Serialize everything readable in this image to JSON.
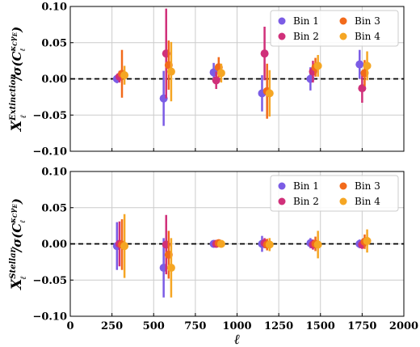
{
  "chart_data": [
    {
      "type": "scatter",
      "panel": "top",
      "ylabel": "X_ℓ^Extinction / σ(C_ℓ^{κ_C γ_E})",
      "ylabel_main": "X",
      "ylabel_sub": "ℓ",
      "ylabel_sup": "Extinction",
      "ylabel_rest": "/σ(C",
      "ylabel_rest_sub": "ℓ",
      "ylabel_rest_sup": "κ",
      "ylabel_rest_sup2": "C",
      "ylabel_rest_sup3": "γ",
      "ylabel_rest_sup4": "E",
      "ylabel_close": ")",
      "xlim": [
        0,
        2000
      ],
      "ylim": [
        -0.1,
        0.1
      ],
      "yticks": [
        "−0.10",
        "−0.05",
        "0.00",
        "0.05",
        "0.10"
      ],
      "ytick_values": [
        -0.1,
        -0.05,
        0.0,
        0.05,
        0.1
      ],
      "grid": true,
      "legend": "top-right",
      "reference_line": 0,
      "series": [
        {
          "name": "Bin 1",
          "color": "#7b5ce5",
          "x": [
            280,
            560,
            860,
            1150,
            1440,
            1735
          ],
          "y": [
            0.0,
            -0.027,
            0.009,
            -0.02,
            0.0,
            0.02
          ],
          "yerr": [
            0.006,
            0.038,
            0.013,
            0.025,
            0.016,
            0.02
          ]
        },
        {
          "name": "Bin 2",
          "color": "#d0307a",
          "x": [
            295,
            575,
            875,
            1165,
            1455,
            1750
          ],
          "y": [
            0.003,
            0.035,
            -0.002,
            0.035,
            0.01,
            -0.013
          ],
          "yerr": [
            0.008,
            0.062,
            0.012,
            0.037,
            0.015,
            0.02
          ]
        },
        {
          "name": "Bin 3",
          "color": "#f26a1b",
          "x": [
            310,
            590,
            890,
            1180,
            1470,
            1765
          ],
          "y": [
            0.007,
            0.019,
            0.016,
            -0.017,
            0.016,
            0.008
          ],
          "yerr": [
            0.033,
            0.034,
            0.014,
            0.038,
            0.013,
            0.018
          ]
        },
        {
          "name": "Bin 4",
          "color": "#f5a623",
          "x": [
            325,
            605,
            905,
            1195,
            1485,
            1780
          ],
          "y": [
            0.005,
            0.01,
            0.008,
            -0.02,
            0.018,
            0.018
          ],
          "yerr": [
            0.013,
            0.041,
            0.013,
            0.032,
            0.015,
            0.02
          ]
        }
      ]
    },
    {
      "type": "scatter",
      "panel": "bottom",
      "ylabel": "X_ℓ^Stellar / σ(C_ℓ^{κ_C γ_E})",
      "ylabel_main": "X",
      "ylabel_sub": "ℓ",
      "ylabel_sup": "Stellar",
      "ylabel_rest": "/σ(C",
      "ylabel_rest_sub": "ℓ",
      "ylabel_rest_sup": "κ",
      "ylabel_rest_sup2": "C",
      "ylabel_rest_sup3": "γ",
      "ylabel_rest_sup4": "E",
      "ylabel_close": ")",
      "xlabel": "ℓ",
      "xlim": [
        0,
        2000
      ],
      "ylim": [
        -0.1,
        0.1
      ],
      "xticks": [
        "0",
        "250",
        "500",
        "750",
        "1000",
        "1250",
        "1500",
        "1750",
        "2000"
      ],
      "xtick_values": [
        0,
        250,
        500,
        750,
        1000,
        1250,
        1500,
        1750,
        2000
      ],
      "yticks": [
        "−0.10",
        "−0.05",
        "0.00",
        "0.05",
        "0.10"
      ],
      "ytick_values": [
        -0.1,
        -0.05,
        0.0,
        0.05,
        0.1
      ],
      "grid": true,
      "legend": "top-right",
      "reference_line": 0,
      "series": [
        {
          "name": "Bin 1",
          "color": "#7b5ce5",
          "x": [
            280,
            560,
            860,
            1150,
            1440,
            1735
          ],
          "y": [
            -0.003,
            -0.033,
            0.0,
            0.0,
            0.001,
            0.0
          ],
          "yerr": [
            0.033,
            0.041,
            0.004,
            0.011,
            0.007,
            0.006
          ]
        },
        {
          "name": "Bin 2",
          "color": "#d0307a",
          "x": [
            295,
            575,
            875,
            1165,
            1455,
            1750
          ],
          "y": [
            0.0,
            -0.001,
            0.0,
            0.001,
            -0.001,
            -0.001
          ],
          "yerr": [
            0.031,
            0.041,
            0.004,
            0.007,
            0.007,
            0.006
          ]
        },
        {
          "name": "Bin 3",
          "color": "#f26a1b",
          "x": [
            310,
            590,
            890,
            1180,
            1470,
            1765
          ],
          "y": [
            -0.001,
            -0.015,
            0.001,
            -0.001,
            0.0,
            0.003
          ],
          "yerr": [
            0.035,
            0.033,
            0.005,
            0.008,
            0.01,
            0.01
          ]
        },
        {
          "name": "Bin 4",
          "color": "#f5a623",
          "x": [
            325,
            605,
            905,
            1195,
            1485,
            1780
          ],
          "y": [
            -0.003,
            -0.033,
            0.0,
            -0.001,
            -0.001,
            0.004
          ],
          "yerr": [
            0.044,
            0.041,
            0.005,
            0.009,
            0.019,
            0.016
          ]
        }
      ]
    }
  ]
}
